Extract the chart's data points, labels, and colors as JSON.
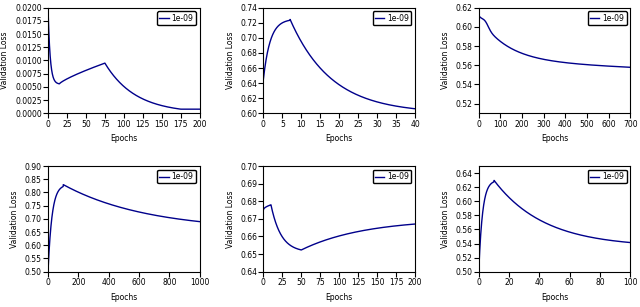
{
  "line_color": "#00008B",
  "line_width": 1.0,
  "legend_label": "1e-09",
  "tick_fontsize": 5.5,
  "label_fontsize": 5.5,
  "legend_fontsize": 5.5,
  "subplots": [
    {
      "ylabel": "Validation Loss",
      "xlabel": "Epochs",
      "xlim": [
        0,
        200
      ],
      "ylim": [
        0.0,
        0.02
      ],
      "yticks": [
        0.0,
        0.0025,
        0.005,
        0.0075,
        0.01,
        0.0125,
        0.015,
        0.0175,
        0.02
      ],
      "xticks": [
        0,
        25,
        50,
        75,
        100,
        125,
        150,
        175,
        200
      ]
    },
    {
      "ylabel": "Validation Loss",
      "xlabel": "Epochs",
      "xlim": [
        0,
        40
      ],
      "ylim": [
        0.6,
        0.74
      ],
      "yticks": [
        0.6,
        0.62,
        0.64,
        0.66,
        0.68,
        0.7,
        0.72,
        0.74
      ],
      "xticks": [
        0,
        5,
        10,
        15,
        20,
        25,
        30,
        35,
        40
      ]
    },
    {
      "ylabel": "Validation Loss",
      "xlabel": "Epochs",
      "xlim": [
        0,
        700
      ],
      "ylim": [
        0.51,
        0.62
      ],
      "yticks": [
        0.52,
        0.54,
        0.56,
        0.58,
        0.6,
        0.62
      ],
      "xticks": [
        0,
        100,
        200,
        300,
        400,
        500,
        600,
        700
      ]
    },
    {
      "ylabel": "Validation Loss",
      "xlabel": "Epochs",
      "xlim": [
        0,
        1000
      ],
      "ylim": [
        0.5,
        0.9
      ],
      "yticks": [
        0.5,
        0.55,
        0.6,
        0.65,
        0.7,
        0.75,
        0.8,
        0.85,
        0.9
      ],
      "xticks": [
        0,
        200,
        400,
        600,
        800,
        1000
      ]
    },
    {
      "ylabel": "Validation Loss",
      "xlabel": "Epochs",
      "xlim": [
        0,
        200
      ],
      "ylim": [
        0.64,
        0.7
      ],
      "yticks": [
        0.64,
        0.65,
        0.66,
        0.67,
        0.68,
        0.69,
        0.7
      ],
      "xticks": [
        0,
        25,
        50,
        75,
        100,
        125,
        150,
        175,
        200
      ]
    },
    {
      "ylabel": "Validation Loss",
      "xlabel": "Epochs",
      "xlim": [
        0,
        100
      ],
      "ylim": [
        0.5,
        0.65
      ],
      "yticks": [
        0.5,
        0.52,
        0.54,
        0.56,
        0.58,
        0.6,
        0.62,
        0.64
      ],
      "xticks": [
        0,
        20,
        40,
        60,
        80,
        100
      ]
    }
  ]
}
